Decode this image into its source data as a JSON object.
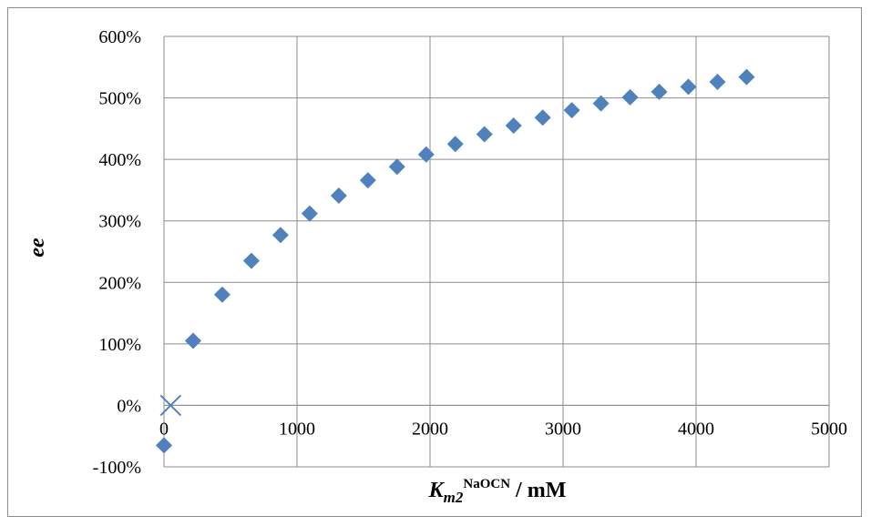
{
  "chart_data": {
    "type": "scatter",
    "xlabel": {
      "main": "K",
      "sub": "m2",
      "sup": "NaOCN",
      "suffix": " / mM"
    },
    "ylabel": "ee",
    "xlim": [
      0,
      5000
    ],
    "ylim": [
      -100,
      600
    ],
    "x_ticks": [
      0,
      1000,
      2000,
      3000,
      4000,
      5000
    ],
    "y_ticks": [
      -100,
      0,
      100,
      200,
      300,
      400,
      500,
      600
    ],
    "y_tick_labels": [
      "-100%",
      "0%",
      "100%",
      "200%",
      "300%",
      "400%",
      "500%",
      "600%"
    ],
    "x_tick_labels": [
      "0",
      "1000",
      "2000",
      "3000",
      "4000",
      "5000"
    ],
    "grid": true,
    "series": [
      {
        "marker": "diamond",
        "color": "#4F81BD",
        "x": [
          0,
          219,
          438,
          657,
          876,
          1095,
          1314,
          1533,
          1752,
          1971,
          2190,
          2409,
          2628,
          2847,
          3066,
          3285,
          3504,
          3723,
          3942,
          4161,
          4380
        ],
        "y": [
          -65,
          105,
          180,
          235,
          277,
          312,
          341,
          366,
          388,
          408,
          425,
          441,
          455,
          468,
          480,
          491,
          501,
          510,
          518,
          526,
          534
        ]
      },
      {
        "marker": "x",
        "color": "#4F81BD",
        "x": [
          50
        ],
        "y": [
          0
        ]
      }
    ]
  }
}
